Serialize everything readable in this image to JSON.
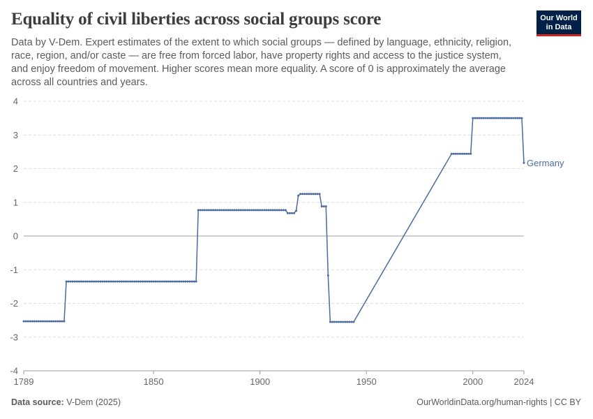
{
  "header": {
    "title": "Equality of civil liberties across social groups score",
    "subtitle": "Data by V-Dem. Expert estimates of the extent to which social groups — defined by language, ethnicity, religion, race, region, and/or caste — are free from forced labor, have property rights and access to the justice system, and enjoy freedom of movement. Higher scores mean more equality. A score of 0 is approximately the average across all countries and years.",
    "logo_line1": "Our World",
    "logo_line2": "in Data"
  },
  "footer": {
    "source_label": "Data source:",
    "source_value": "V-Dem (2025)",
    "right": "OurWorldinData.org/human-rights | CC BY"
  },
  "colors": {
    "series": "#4c6a9c",
    "grid": "#dddddd",
    "zero_line": "#a1a1a1",
    "axis_text": "#666666",
    "axis_line": "#999999"
  },
  "chart_data": {
    "type": "line",
    "xlabel": "",
    "ylabel": "",
    "xlim": [
      1789,
      2024
    ],
    "ylim": [
      -4,
      4
    ],
    "x_ticks": [
      1789,
      1850,
      1900,
      1950,
      2000,
      2024
    ],
    "y_ticks": [
      4,
      3,
      2,
      1,
      0,
      -1,
      -2,
      -3,
      -4
    ],
    "y_tick_labels": [
      "4",
      "3",
      "2",
      "1",
      "0",
      "-1",
      "-2",
      "-3",
      "-4"
    ],
    "series": [
      {
        "name": "Germany",
        "segments": [
          {
            "from": 1789,
            "to": 1808,
            "value": -2.53
          },
          {
            "from": 1809,
            "to": 1870,
            "value": -1.35
          },
          {
            "from": 1871,
            "to": 1912,
            "value": 0.77
          },
          {
            "from": 1913,
            "to": 1916,
            "value": 0.68
          },
          {
            "from": 1917,
            "to": 1917,
            "value": 0.75
          },
          {
            "from": 1918,
            "to": 1918,
            "value": 1.2
          },
          {
            "from": 1919,
            "to": 1928,
            "value": 1.25
          },
          {
            "from": 1929,
            "to": 1931,
            "value": 0.88
          },
          {
            "from": 1932,
            "to": 1932,
            "value": -1.17
          },
          {
            "from": 1933,
            "to": 1944,
            "value": -2.55
          },
          {
            "from": 1990,
            "to": 1999,
            "value": 2.44
          },
          {
            "from": 2000,
            "to": 2023,
            "value": 3.5
          },
          {
            "from": 2024,
            "to": 2024,
            "value": 2.17
          }
        ]
      }
    ]
  }
}
